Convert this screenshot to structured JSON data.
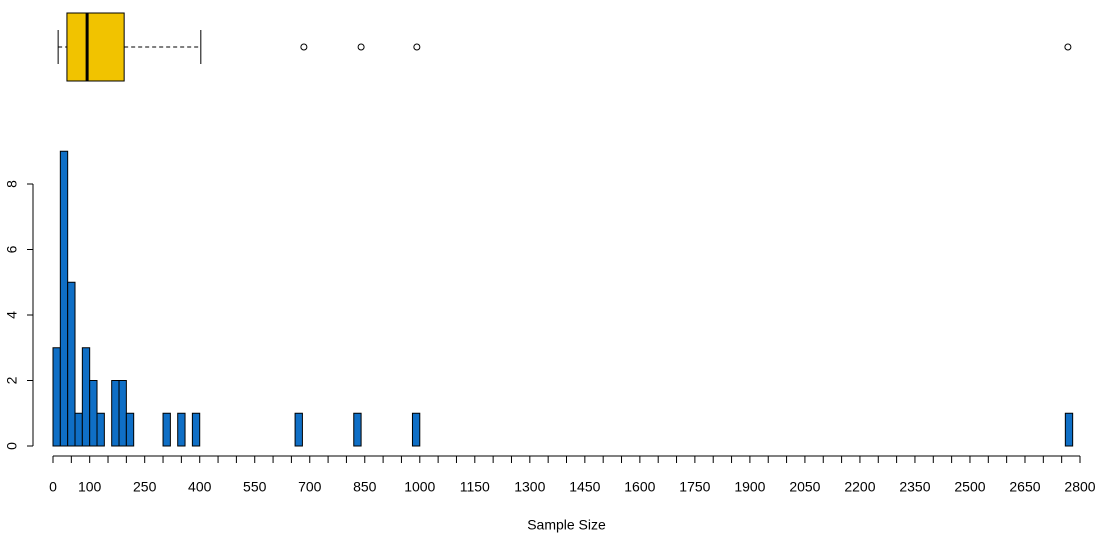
{
  "chart_data": [
    {
      "type": "boxplot",
      "color": "#f1c300",
      "whisker_low": 14,
      "q1": 38,
      "median": 93,
      "q3": 194,
      "whisker_high": 403,
      "outliers": [
        684,
        840,
        992,
        2767
      ],
      "xlim": [
        0,
        2800
      ]
    },
    {
      "type": "histogram",
      "color": "#0f6fc6",
      "xlabel": "Sample Size",
      "bins": [
        0,
        20,
        40,
        60,
        80,
        100,
        120,
        140,
        160,
        180,
        200,
        220,
        240,
        260,
        280,
        300,
        320,
        340,
        360,
        380,
        400,
        420,
        440,
        460,
        480,
        500,
        520,
        540,
        560,
        580,
        600,
        620,
        640,
        660,
        680,
        700,
        720,
        740,
        760,
        780,
        800,
        820,
        840,
        860,
        880,
        900,
        920,
        940,
        960,
        980,
        1000,
        1020,
        1040,
        1060,
        1080,
        1100,
        1120,
        1140,
        1160,
        1180,
        1200,
        1220,
        1240,
        1260,
        1280,
        1300,
        1320,
        1340,
        1360,
        1380,
        1400,
        1420,
        1440,
        1460,
        1480,
        1500,
        1520,
        1540,
        1560,
        1580,
        1600,
        1620,
        1640,
        1660,
        1680,
        1700,
        1720,
        1740,
        1760,
        1780,
        1800,
        1820,
        1840,
        1860,
        1880,
        1900,
        1920,
        1940,
        1960,
        1980,
        2000,
        2020,
        2040,
        2060,
        2080,
        2100,
        2120,
        2140,
        2160,
        2180,
        2200,
        2220,
        2240,
        2260,
        2280,
        2300,
        2320,
        2340,
        2360,
        2380,
        2400,
        2420,
        2440,
        2460,
        2480,
        2500,
        2520,
        2540,
        2560,
        2580,
        2600,
        2620,
        2640,
        2660,
        2680,
        2700,
        2720,
        2740,
        2760,
        2780
      ],
      "counts": [
        3,
        9,
        5,
        1,
        3,
        2,
        1,
        0,
        2,
        2,
        1,
        0,
        0,
        0,
        0,
        1,
        0,
        1,
        0,
        1,
        0,
        0,
        0,
        0,
        0,
        0,
        0,
        0,
        0,
        0,
        0,
        0,
        0,
        1,
        0,
        0,
        0,
        0,
        0,
        0,
        0,
        1,
        0,
        0,
        0,
        0,
        0,
        0,
        0,
        1,
        0,
        0,
        0,
        0,
        0,
        0,
        0,
        0,
        0,
        0,
        0,
        0,
        0,
        0,
        0,
        0,
        0,
        0,
        0,
        0,
        0,
        0,
        0,
        0,
        0,
        0,
        0,
        0,
        0,
        0,
        0,
        0,
        0,
        0,
        0,
        0,
        0,
        0,
        0,
        0,
        0,
        0,
        0,
        0,
        0,
        0,
        0,
        0,
        0,
        0,
        0,
        0,
        0,
        0,
        0,
        0,
        0,
        0,
        0,
        0,
        0,
        0,
        0,
        0,
        0,
        0,
        0,
        0,
        0,
        0,
        0,
        0,
        0,
        0,
        0,
        0,
        0,
        0,
        0,
        0,
        0,
        0,
        0,
        0,
        0,
        0,
        0,
        0,
        1
      ],
      "xlim": [
        0,
        2800
      ],
      "xticks": [
        0,
        100,
        250,
        400,
        550,
        700,
        850,
        1000,
        1150,
        1300,
        1450,
        1600,
        1750,
        1900,
        2050,
        2200,
        2350,
        2500,
        2650,
        2800
      ],
      "xminorticks": [
        0,
        50,
        100,
        150,
        200,
        250,
        300,
        350,
        400,
        450,
        500,
        550,
        600,
        650,
        700,
        750,
        800,
        850,
        900,
        950,
        1000,
        1050,
        1100,
        1150,
        1200,
        1250,
        1300,
        1350,
        1400,
        1450,
        1500,
        1550,
        1600,
        1650,
        1700,
        1750,
        1800,
        1850,
        1900,
        1950,
        2000,
        2050,
        2100,
        2150,
        2200,
        2250,
        2300,
        2350,
        2400,
        2450,
        2500,
        2550,
        2600,
        2650,
        2700,
        2750,
        2800
      ],
      "ylim": [
        0,
        8
      ],
      "yticks": [
        0,
        2,
        4,
        6,
        8
      ]
    }
  ]
}
